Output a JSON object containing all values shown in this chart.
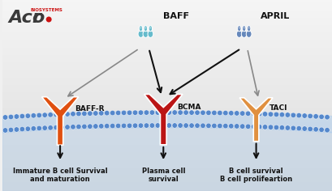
{
  "bg_color_top": "#f0f0f0",
  "bg_color_bot": "#d8d8d8",
  "baff_label": "BAFF",
  "april_label": "APRIL",
  "baffr_label": "BAFF-R",
  "bcma_label": "BCMA",
  "taci_label": "TACI",
  "text1": "Immature B cell Survival\nand maturation",
  "text2": "Plasma cell\nsurvival",
  "text3": "B cell survival\nB cell prolifeartion",
  "membrane_circle_color": "#5588cc",
  "membrane_fill": "#aaccee",
  "baffr_color": "#e05010",
  "bcma_color": "#bb1515",
  "taci_color": "#e09040",
  "baff_color": "#66bbcc",
  "april_color": "#6688bb",
  "arrow_gray": "#888888",
  "arrow_black": "#111111",
  "logo_dark": "#3a3a3a",
  "logo_red": "#cc1111",
  "text_color": "#111111"
}
